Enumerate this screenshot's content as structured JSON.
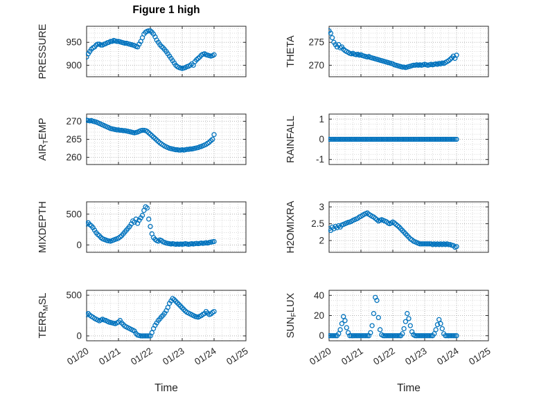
{
  "colors": {
    "accent": "#0072BD",
    "axis": "#262626",
    "grid_major": "#b2b2b2",
    "grid_minor": "#d9d9d9",
    "title": "#000000"
  },
  "chart_data": {
    "type": "scatter",
    "figure_title": "Figure 1 high",
    "xlabel": "Time",
    "x_unit": "days since 01/20",
    "xlim": [
      0,
      5
    ],
    "x_ticks": [
      0,
      1,
      2,
      3,
      4,
      5
    ],
    "x_tick_labels": [
      "01/20",
      "01/21",
      "01/22",
      "01/23",
      "01/24",
      "01/25"
    ],
    "x_minor_step": 0.25,
    "grid": "major and minor, dotted",
    "marker": "open circle",
    "layout": {
      "rows": 4,
      "cols": 2
    },
    "x": [
      0,
      0.05,
      0.1,
      0.15,
      0.2,
      0.25,
      0.3,
      0.35,
      0.4,
      0.45,
      0.5,
      0.55,
      0.6,
      0.65,
      0.7,
      0.75,
      0.8,
      0.85,
      0.9,
      0.95,
      1,
      1.05,
      1.1,
      1.15,
      1.2,
      1.25,
      1.3,
      1.35,
      1.4,
      1.45,
      1.5,
      1.55,
      1.6,
      1.65,
      1.7,
      1.75,
      1.8,
      1.85,
      1.9,
      1.95,
      2,
      2.05,
      2.1,
      2.15,
      2.2,
      2.25,
      2.3,
      2.35,
      2.4,
      2.45,
      2.5,
      2.55,
      2.6,
      2.65,
      2.7,
      2.75,
      2.8,
      2.85,
      2.9,
      2.95,
      3,
      3.05,
      3.1,
      3.15,
      3.2,
      3.25,
      3.3,
      3.35,
      3.4,
      3.45,
      3.5,
      3.55,
      3.6,
      3.65,
      3.7,
      3.75,
      3.8,
      3.85,
      3.9,
      3.95,
      4
    ],
    "subplots": [
      {
        "name": "pressure",
        "ylabel_parts": [
          {
            "text": "PRESSURE",
            "sub": false
          }
        ],
        "yticks": [
          900,
          950
        ],
        "ylim": [
          875,
          985
        ],
        "y_minor_step": 10,
        "values": [
          918,
          925,
          930,
          935,
          938,
          940,
          944,
          946,
          946,
          944,
          944,
          946,
          947,
          949,
          950,
          952,
          952,
          954,
          953,
          952,
          952,
          951,
          950,
          949,
          948,
          948,
          947,
          946,
          945,
          944,
          943,
          941,
          940,
          946,
          952,
          960,
          968,
          972,
          974,
          975,
          975,
          972,
          968,
          962,
          955,
          950,
          945,
          941,
          938,
          934,
          930,
          925,
          920,
          915,
          910,
          905,
          900,
          897,
          895,
          894,
          893,
          894,
          895,
          897,
          898,
          900,
          903,
          900,
          908,
          912,
          915,
          918,
          922,
          924,
          925,
          923,
          922,
          921,
          920,
          921,
          923
        ]
      },
      {
        "name": "theta",
        "ylabel_parts": [
          {
            "text": "THETA",
            "sub": false
          }
        ],
        "yticks": [
          270,
          275
        ],
        "ylim": [
          267.5,
          278.5
        ],
        "y_minor_step": 1,
        "values": [
          277.5,
          277,
          276,
          275,
          274.5,
          274,
          274.5,
          273.8,
          274,
          273.5,
          273.2,
          273,
          272.8,
          272.6,
          272.5,
          272.6,
          272.4,
          272.3,
          272.4,
          272.2,
          272.3,
          272.1,
          272,
          271.9,
          271.8,
          271.9,
          271.7,
          271.6,
          271.5,
          271.4,
          271.3,
          271.2,
          271.1,
          271,
          270.9,
          270.8,
          270.7,
          270.6,
          270.5,
          270.4,
          270.3,
          270.1,
          270,
          269.9,
          269.8,
          269.7,
          269.6,
          269.6,
          269.5,
          269.6,
          269.7,
          269.8,
          269.9,
          270,
          270,
          270.1,
          270,
          270.1,
          270,
          270.1,
          270.2,
          270.1,
          270,
          270.1,
          270.2,
          270.1,
          270.2,
          270.3,
          270.2,
          270.4,
          270.3,
          270.5,
          270.4,
          270.6,
          270.8,
          271,
          271.3,
          271.6,
          272,
          271.5,
          272.2
        ]
      },
      {
        "name": "air-temp",
        "ylabel_parts": [
          {
            "text": "AIR",
            "sub": false
          },
          {
            "text": "T",
            "sub": true
          },
          {
            "text": "EMP",
            "sub": false
          }
        ],
        "yticks": [
          260,
          265,
          270
        ],
        "ylim": [
          258,
          272
        ],
        "y_minor_step": 1,
        "values": [
          270.3,
          270.2,
          270.1,
          270.2,
          270,
          269.9,
          269.8,
          269.6,
          269.4,
          269.2,
          269,
          268.8,
          268.6,
          268.4,
          268.2,
          268,
          267.9,
          267.8,
          267.7,
          267.6,
          267.6,
          267.5,
          267.5,
          267.4,
          267.4,
          267.3,
          267.2,
          267.1,
          267,
          266.9,
          266.8,
          266.9,
          267,
          267.2,
          267.4,
          267.5,
          267.5,
          267.4,
          267.2,
          266.8,
          266.4,
          266,
          265.6,
          265.2,
          264.8,
          264.4,
          264,
          263.7,
          263.4,
          263.1,
          262.9,
          262.7,
          262.5,
          262.4,
          262.3,
          262.2,
          262.1,
          262.1,
          262,
          262,
          262.1,
          262,
          262.1,
          262.2,
          262.2,
          262.3,
          262.3,
          262.4,
          262.5,
          262.6,
          262.7,
          262.9,
          263,
          263.2,
          263.4,
          263.6,
          263.9,
          264.2,
          264.6,
          265,
          266.3
        ]
      },
      {
        "name": "rainfall",
        "ylabel_parts": [
          {
            "text": "RAINFALL",
            "sub": false
          }
        ],
        "yticks": [
          -1,
          0,
          1
        ],
        "ylim": [
          -1.25,
          1.25
        ],
        "y_minor_step": 0.25,
        "values": [
          0,
          0,
          0,
          0,
          0,
          0,
          0,
          0,
          0,
          0,
          0,
          0,
          0,
          0,
          0,
          0,
          0,
          0,
          0,
          0,
          0,
          0,
          0,
          0,
          0,
          0,
          0,
          0,
          0,
          0,
          0,
          0,
          0,
          0,
          0,
          0,
          0,
          0,
          0,
          0,
          0,
          0,
          0,
          0,
          0,
          0,
          0,
          0,
          0,
          0,
          0,
          0,
          0,
          0,
          0,
          0,
          0,
          0,
          0,
          0,
          0,
          0,
          0,
          0,
          0,
          0,
          0,
          0,
          0,
          0,
          0,
          0,
          0,
          0,
          0,
          0,
          0,
          0,
          0,
          0,
          0
        ]
      },
      {
        "name": "mixdepth",
        "ylabel_parts": [
          {
            "text": "MIXDEPTH",
            "sub": false
          }
        ],
        "yticks": [
          0,
          500
        ],
        "ylim": [
          -120,
          700
        ],
        "y_minor_step": 100,
        "values": [
          340,
          360,
          330,
          310,
          280,
          240,
          200,
          170,
          150,
          120,
          100,
          90,
          80,
          70,
          65,
          60,
          70,
          80,
          90,
          100,
          110,
          130,
          150,
          180,
          210,
          240,
          270,
          300,
          340,
          390,
          370,
          420,
          350,
          400,
          440,
          480,
          560,
          620,
          600,
          420,
          300,
          180,
          120,
          90,
          70,
          60,
          80,
          70,
          50,
          40,
          30,
          25,
          20,
          15,
          20,
          15,
          10,
          15,
          10,
          15,
          10,
          15,
          20,
          15,
          10,
          15,
          20,
          15,
          20,
          25,
          20,
          25,
          30,
          25,
          30,
          35,
          30,
          40,
          45,
          50,
          55
        ]
      },
      {
        "name": "h2omixra",
        "ylabel_parts": [
          {
            "text": "H2OMIXRA",
            "sub": false
          }
        ],
        "yticks": [
          2,
          2.5,
          3
        ],
        "ylim": [
          1.65,
          3.15
        ],
        "y_minor_step": 0.1,
        "values": [
          2.35,
          2.3,
          2.4,
          2.35,
          2.42,
          2.38,
          2.44,
          2.4,
          2.46,
          2.48,
          2.5,
          2.52,
          2.54,
          2.55,
          2.57,
          2.6,
          2.62,
          2.64,
          2.66,
          2.7,
          2.72,
          2.75,
          2.78,
          2.8,
          2.82,
          2.78,
          2.75,
          2.72,
          2.7,
          2.66,
          2.62,
          2.58,
          2.6,
          2.62,
          2.6,
          2.58,
          2.56,
          2.52,
          2.5,
          2.52,
          2.55,
          2.52,
          2.48,
          2.44,
          2.4,
          2.35,
          2.3,
          2.25,
          2.2,
          2.15,
          2.1,
          2.05,
          2.02,
          1.98,
          1.96,
          1.94,
          1.92,
          1.9,
          1.9,
          1.9,
          1.9,
          1.9,
          1.9,
          1.9,
          1.9,
          1.88,
          1.9,
          1.88,
          1.9,
          1.88,
          1.9,
          1.88,
          1.9,
          1.88,
          1.9,
          1.88,
          1.88,
          1.86,
          1.85,
          1.8,
          1.82
        ]
      },
      {
        "name": "terr-msl",
        "ylabel_parts": [
          {
            "text": "TERR",
            "sub": false
          },
          {
            "text": "M",
            "sub": true
          },
          {
            "text": "SL",
            "sub": false
          }
        ],
        "yticks": [
          0,
          500
        ],
        "ylim": [
          -60,
          560
        ],
        "y_minor_step": 100,
        "values": [
          260,
          275,
          255,
          240,
          230,
          215,
          205,
          195,
          185,
          195,
          205,
          195,
          190,
          180,
          170,
          165,
          160,
          155,
          150,
          160,
          170,
          190,
          160,
          140,
          120,
          110,
          100,
          90,
          80,
          70,
          60,
          30,
          10,
          5,
          0,
          0,
          0,
          0,
          0,
          0,
          0,
          40,
          90,
          130,
          160,
          190,
          210,
          235,
          255,
          280,
          310,
          350,
          400,
          430,
          460,
          445,
          425,
          405,
          385,
          365,
          345,
          325,
          305,
          290,
          280,
          270,
          260,
          250,
          240,
          235,
          230,
          240,
          250,
          265,
          275,
          300,
          280,
          262,
          270,
          288,
          300
        ]
      },
      {
        "name": "sun-flux",
        "ylabel_parts": [
          {
            "text": "SUN",
            "sub": false
          },
          {
            "text": "F",
            "sub": true
          },
          {
            "text": "LUX",
            "sub": false
          }
        ],
        "yticks": [
          0,
          20,
          40
        ],
        "ylim": [
          -5,
          45
        ],
        "y_minor_step": 5,
        "values": [
          0,
          0,
          0,
          0,
          0,
          0,
          2,
          6,
          12,
          19,
          15,
          8,
          3,
          0,
          0,
          0,
          0,
          0,
          0,
          0,
          0,
          0,
          0,
          0,
          0,
          0,
          3,
          10,
          22,
          38,
          35,
          18,
          6,
          1,
          0,
          0,
          0,
          0,
          0,
          0,
          0,
          0,
          0,
          0,
          0,
          0,
          2,
          7,
          14,
          22,
          17,
          10,
          4,
          1,
          0,
          0,
          0,
          0,
          0,
          0,
          0,
          0,
          0,
          0,
          0,
          0,
          2,
          6,
          11,
          16,
          12,
          7,
          2,
          0,
          0,
          0,
          0,
          0,
          0,
          0,
          0
        ]
      }
    ]
  }
}
